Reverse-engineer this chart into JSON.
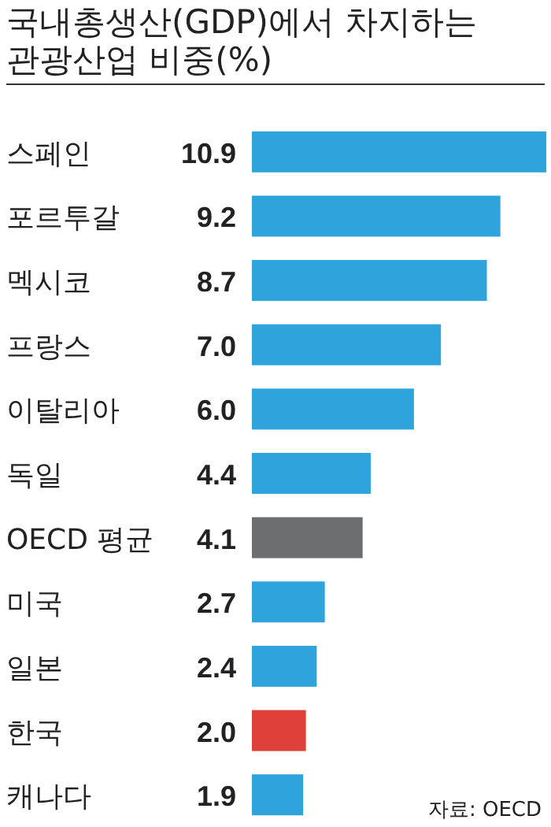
{
  "chart_data": {
    "type": "bar",
    "orientation": "horizontal",
    "title": "국내총생산(GDP)에서 차지하는 관광산업 비중(%)",
    "categories": [
      "스페인",
      "포르투갈",
      "멕시코",
      "프랑스",
      "이탈리아",
      "독일",
      "OECD 평균",
      "미국",
      "일본",
      "한국",
      "캐나다"
    ],
    "values": [
      10.9,
      9.2,
      8.7,
      7.0,
      6.0,
      4.4,
      4.1,
      2.7,
      2.4,
      2.0,
      1.9
    ],
    "value_labels": [
      "10.9",
      "9.2",
      "8.7",
      "7.0",
      "6.0",
      "4.4",
      "4.1",
      "2.7",
      "2.4",
      "2.0",
      "1.9"
    ],
    "colors": [
      "#2ea3dc",
      "#2ea3dc",
      "#2ea3dc",
      "#2ea3dc",
      "#2ea3dc",
      "#2ea3dc",
      "#6d6e70",
      "#2ea3dc",
      "#2ea3dc",
      "#e0403a",
      "#2ea3dc"
    ],
    "annotations": [
      "자료: OECD"
    ]
  }
}
